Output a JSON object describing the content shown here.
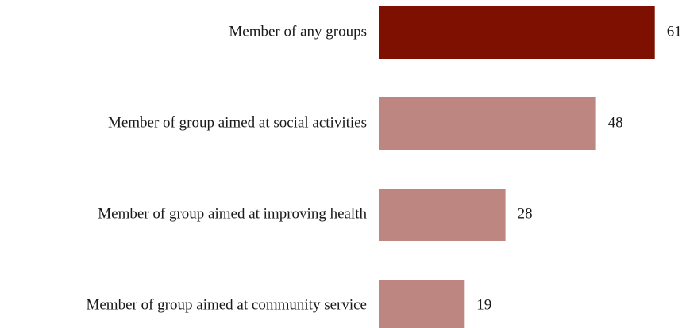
{
  "chart_data": {
    "type": "bar",
    "orientation": "horizontal",
    "categories": [
      "Member of any groups",
      "Member of group aimed at social activities",
      "Member of group aimed at improving health",
      "Member of group aimed at community service"
    ],
    "values": [
      61,
      48,
      28,
      19
    ],
    "bar_colors": [
      "#7d1000",
      "#bd8680",
      "#bd8680",
      "#bd8680"
    ],
    "title": "",
    "xlabel": "",
    "ylabel": "",
    "xlim": [
      0,
      61
    ],
    "grid": false,
    "legend": "none"
  }
}
